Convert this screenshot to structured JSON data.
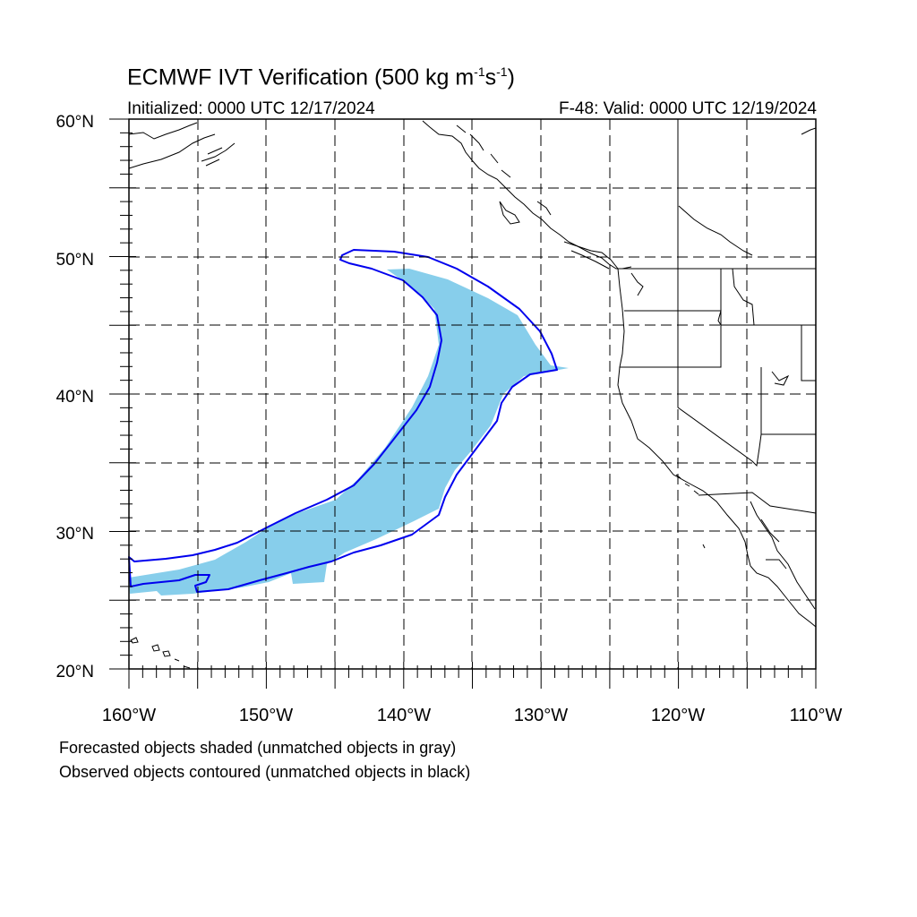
{
  "title": {
    "main": "ECMWF IVT Verification (500 kg m",
    "sup1": "-1",
    "mid": "s",
    "sup2": "-1",
    "end": ")"
  },
  "initialized": "Initialized: 0000 UTC 12/17/2024",
  "valid": "F-48: Valid: 0000 UTC 12/19/2024",
  "map": {
    "lon_range": [
      -160,
      -110
    ],
    "lat_range": [
      20,
      60
    ],
    "lat_labels": [
      "60°N",
      "50°N",
      "40°N",
      "30°N",
      "20°N"
    ],
    "lon_labels": [
      "160°W",
      "150°W",
      "140°W",
      "130°W",
      "120°W",
      "110°W"
    ],
    "grid": "dashed, every 5 degrees",
    "forecast_object_color": "#87ceeb",
    "observed_contour_color": "#0000ee",
    "coastline_color": "#000000"
  },
  "notes": {
    "line1": "Forecasted objects shaded (unmatched objects in gray)",
    "line2": "Observed objects contoured (unmatched objects in black)"
  }
}
